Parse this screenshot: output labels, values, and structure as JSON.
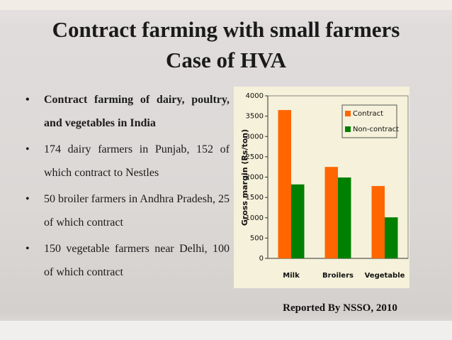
{
  "title": [
    "Contract farming with small farmers",
    "Case of HVA"
  ],
  "bullets": [
    "Contract farming of dairy, poultry, and vegetables in India",
    "174 dairy farmers in Punjab, 152 of which contract to Nestles",
    "50 broiler farmers in Andhra Pradesh, 25 of which contract",
    "150 vegetable farmers near Delhi, 100 of which contract"
  ],
  "chart_data": {
    "type": "bar",
    "y_label": "Gross margin (Rs/ton)",
    "categories": [
      "Milk",
      "Broilers",
      "Vegetable"
    ],
    "series": [
      {
        "name": "Contract",
        "color": "#ff6600",
        "values": [
          3650,
          2250,
          1780
        ]
      },
      {
        "name": "Non-contract",
        "color": "#008000",
        "values": [
          1820,
          1990,
          1010
        ]
      }
    ],
    "ylim": [
      0,
      4000
    ],
    "yticks": [
      0,
      500,
      1000,
      1500,
      2000,
      2500,
      3000,
      3500,
      4000
    ]
  },
  "source": "Reported By NSSO, 2010"
}
